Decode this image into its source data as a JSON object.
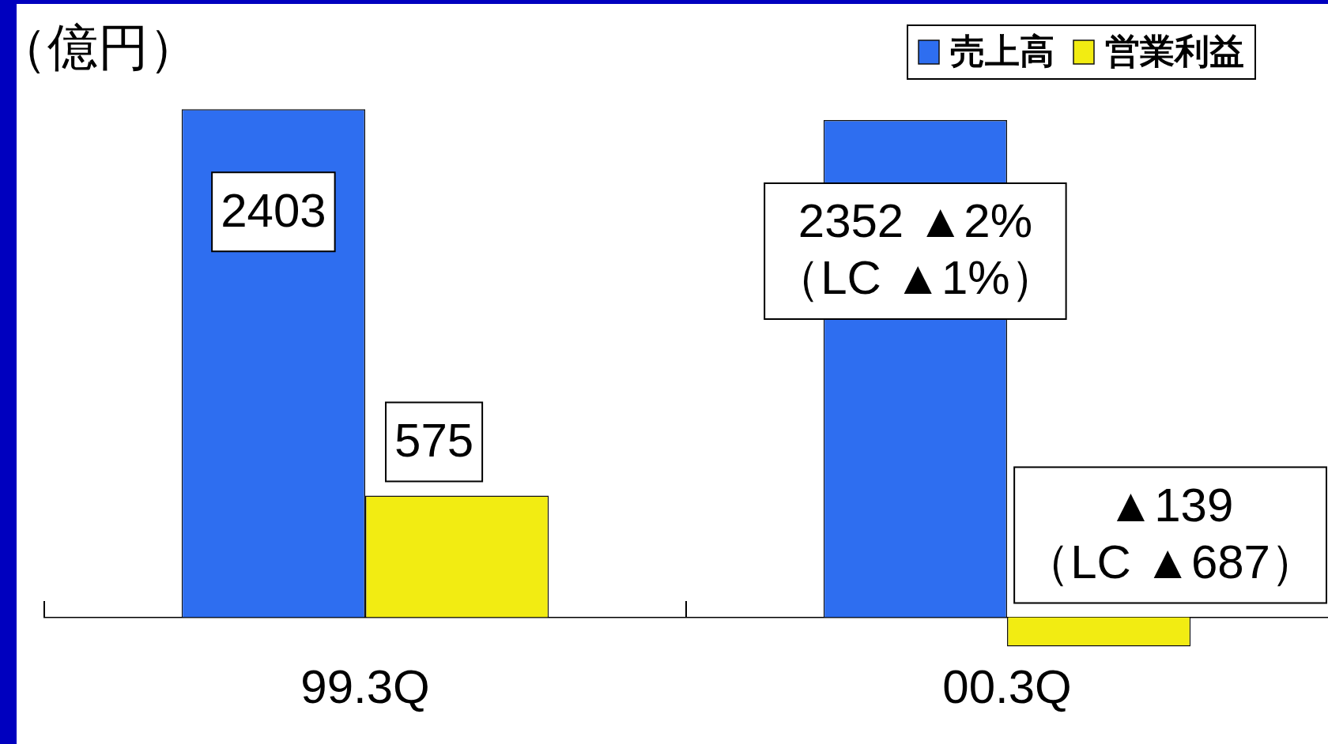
{
  "chart_data": {
    "type": "bar",
    "ylabel": "（億円）",
    "categories": [
      "99.3Q",
      "00.3Q"
    ],
    "series": [
      {
        "name": "売上高",
        "color": "#2e6ef0",
        "values": [
          2403,
          2352
        ],
        "value_labels": [
          "2403",
          "2352 ▲2%\n（LC ▲1%）"
        ]
      },
      {
        "name": "営業利益",
        "color": "#f2ec12",
        "values": [
          575,
          -139
        ],
        "value_labels": [
          "575",
          "▲139\n（LC ▲687）"
        ]
      }
    ],
    "ylim": [
      -600,
      2800
    ],
    "legend": "top right",
    "tick_labels": "x"
  }
}
